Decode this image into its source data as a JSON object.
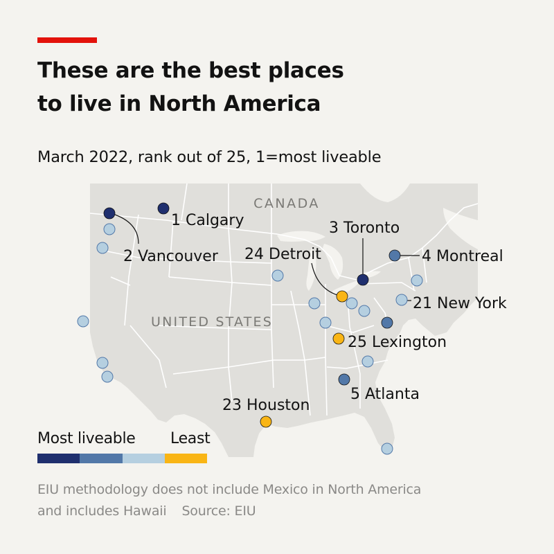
{
  "header": {
    "title_line1": "These are the best places",
    "title_line2": "to live in North America",
    "subtitle": "March 2022, rank out of 25, 1=most liveable"
  },
  "map": {
    "country_labels": {
      "canada": "CANADA",
      "usa": "UNITED STATES"
    },
    "labelled_cities": {
      "calgary": {
        "rank": "1",
        "name": "Calgary"
      },
      "vancouver": {
        "rank": "2",
        "name": "Vancouver"
      },
      "toronto": {
        "rank": "3",
        "name": "Toronto"
      },
      "montreal": {
        "rank": "4",
        "name": "Montreal"
      },
      "atlanta": {
        "rank": "5",
        "name": "Atlanta"
      },
      "new_york": {
        "rank": "21",
        "name": "New York"
      },
      "houston": {
        "rank": "23",
        "name": "Houston"
      },
      "detroit": {
        "rank": "24",
        "name": "Detroit"
      },
      "lexington": {
        "rank": "25",
        "name": "Lexington"
      }
    },
    "tier_colors": {
      "most": "#1f2f6e",
      "high": "#5278a8",
      "mid": "#b5cfe0",
      "least": "#f9b515"
    },
    "land_color": "#e0dfdb",
    "border_color": "#ffffff"
  },
  "legend": {
    "most_label": "Most liveable",
    "least_label": "Least",
    "colors": [
      "#1f2f6e",
      "#5278a8",
      "#b5cfe0",
      "#f9b515"
    ]
  },
  "footnote": {
    "line1": "EIU methodology does not include Mexico in North America",
    "line2": "and includes Hawaii",
    "source": "Source: EIU"
  }
}
